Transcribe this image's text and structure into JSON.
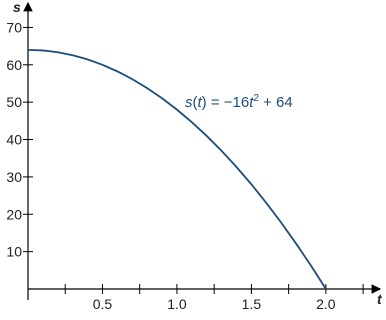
{
  "chart_data": {
    "type": "line",
    "x_label": "t",
    "y_label": "s",
    "annotation": [
      "s",
      "(",
      "t",
      ") = −16",
      "t",
      "2",
      " + 64"
    ],
    "x": [
      0,
      0.1,
      0.2,
      0.3,
      0.4,
      0.5,
      0.6,
      0.7,
      0.8,
      0.9,
      1.0,
      1.1,
      1.2,
      1.3,
      1.4,
      1.5,
      1.6,
      1.7,
      1.8,
      1.9,
      2.0
    ],
    "series": [
      {
        "color": "#1d4d7c",
        "values": [
          64,
          63.84,
          63.36,
          62.56,
          61.44,
          60,
          58.24,
          56.16,
          53.76,
          51.04,
          48,
          44.64,
          40.96,
          36.96,
          32.64,
          28,
          23.04,
          17.76,
          12.16,
          6.24,
          0
        ]
      }
    ],
    "xlim": [
      0,
      2.35
    ],
    "ylim": [
      0,
      76
    ],
    "xticks": [
      0.5,
      {
        "value": 1,
        "label": "1.0"
      },
      1.5,
      {
        "value": 2,
        "label": "2.0"
      }
    ],
    "xminorticks": [
      0.25,
      0.75,
      1.25,
      1.75,
      2.25
    ],
    "yticks": [
      10,
      20,
      30,
      40,
      50,
      60,
      70
    ]
  }
}
